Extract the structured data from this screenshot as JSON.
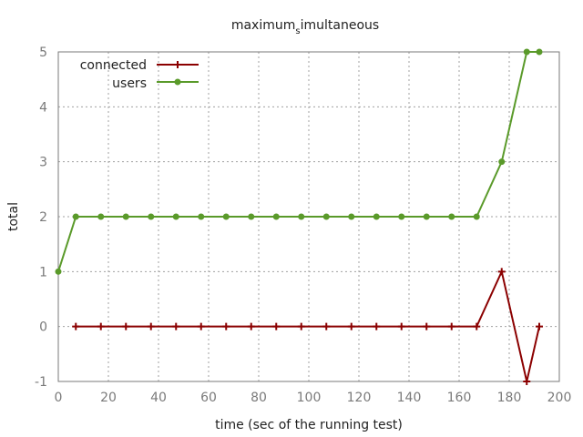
{
  "chart_data": {
    "type": "line",
    "title": "maximum_simultaneous",
    "title_parts": {
      "main": "maximum",
      "sub": "s",
      "rest": "imultaneous"
    },
    "xlabel": "time (sec of the running test)",
    "ylabel": "total",
    "xlim": [
      0,
      200
    ],
    "ylim": [
      -1,
      5
    ],
    "xticks": [
      0,
      20,
      40,
      60,
      80,
      100,
      120,
      140,
      160,
      180,
      200
    ],
    "yticks": [
      -1,
      0,
      1,
      2,
      3,
      4,
      5
    ],
    "grid": true,
    "legend_position": "top-left",
    "series": [
      {
        "name": "connected",
        "color": "#8b0000",
        "marker": "plus",
        "x": [
          7,
          17,
          27,
          37,
          47,
          57,
          67,
          77,
          87,
          97,
          107,
          117,
          127,
          137,
          147,
          157,
          167,
          177,
          187,
          192
        ],
        "y": [
          0,
          0,
          0,
          0,
          0,
          0,
          0,
          0,
          0,
          0,
          0,
          0,
          0,
          0,
          0,
          0,
          0,
          1,
          -1,
          0
        ]
      },
      {
        "name": "users",
        "color": "#5a9a2a",
        "marker": "circle",
        "x": [
          0,
          7,
          17,
          27,
          37,
          47,
          57,
          67,
          77,
          87,
          97,
          107,
          117,
          127,
          137,
          147,
          157,
          167,
          177,
          187,
          192
        ],
        "y": [
          1,
          2,
          2,
          2,
          2,
          2,
          2,
          2,
          2,
          2,
          2,
          2,
          2,
          2,
          2,
          2,
          2,
          2,
          3,
          5,
          5
        ]
      }
    ]
  }
}
